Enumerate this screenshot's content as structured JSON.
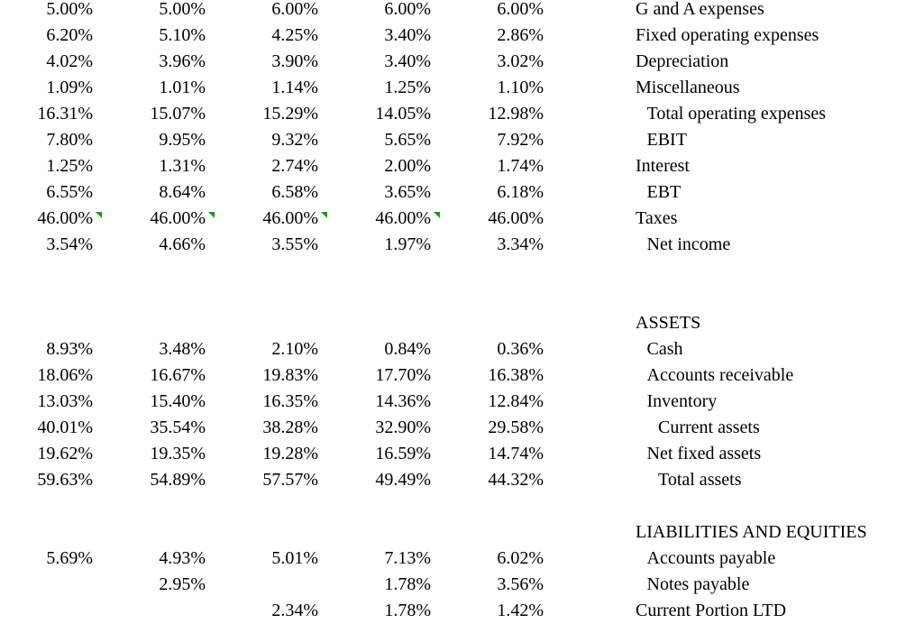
{
  "sections": [
    {
      "rows": [
        {
          "cells": [
            "5.00%",
            "5.00%",
            "6.00%",
            "6.00%",
            "6.00%"
          ],
          "label": "G and A expenses",
          "indent": 0
        },
        {
          "cells": [
            "6.20%",
            "5.10%",
            "4.25%",
            "3.40%",
            "2.86%"
          ],
          "label": "Fixed operating expenses",
          "indent": 0
        },
        {
          "cells": [
            "4.02%",
            "3.96%",
            "3.90%",
            "3.40%",
            "3.02%"
          ],
          "label": "Depreciation",
          "indent": 0
        },
        {
          "cells": [
            "1.09%",
            "1.01%",
            "1.14%",
            "1.25%",
            "1.10%"
          ],
          "label": "Miscellaneous",
          "indent": 0
        },
        {
          "cells": [
            "16.31%",
            "15.07%",
            "15.29%",
            "14.05%",
            "12.98%"
          ],
          "label": "Total operating expenses",
          "indent": 1
        },
        {
          "cells": [
            "7.80%",
            "9.95%",
            "9.32%",
            "5.65%",
            "7.92%"
          ],
          "label": "EBIT",
          "indent": 1
        },
        {
          "cells": [
            "1.25%",
            "1.31%",
            "2.74%",
            "2.00%",
            "1.74%"
          ],
          "label": "Interest",
          "indent": 0
        },
        {
          "cells": [
            "6.55%",
            "8.64%",
            "6.58%",
            "3.65%",
            "6.18%"
          ],
          "label": "EBT",
          "indent": 1
        },
        {
          "cells": [
            "46.00%",
            "46.00%",
            "46.00%",
            "46.00%",
            "46.00%"
          ],
          "label": "Taxes",
          "indent": 0,
          "flags": [
            true,
            true,
            true,
            true,
            false
          ]
        },
        {
          "cells": [
            "3.54%",
            "4.66%",
            "3.55%",
            "1.97%",
            "3.34%"
          ],
          "label": "Net income",
          "indent": 1
        }
      ]
    },
    {
      "heading": "ASSETS",
      "rows": [
        {
          "cells": [
            "8.93%",
            "3.48%",
            "2.10%",
            "0.84%",
            "0.36%"
          ],
          "label": "Cash",
          "indent": 1
        },
        {
          "cells": [
            "18.06%",
            "16.67%",
            "19.83%",
            "17.70%",
            "16.38%"
          ],
          "label": "Accounts receivable",
          "indent": 1
        },
        {
          "cells": [
            "13.03%",
            "15.40%",
            "16.35%",
            "14.36%",
            "12.84%"
          ],
          "label": "Inventory",
          "indent": 1
        },
        {
          "cells": [
            "40.01%",
            "35.54%",
            "38.28%",
            "32.90%",
            "29.58%"
          ],
          "label": "Current assets",
          "indent": 2
        },
        {
          "cells": [
            "19.62%",
            "19.35%",
            "19.28%",
            "16.59%",
            "14.74%"
          ],
          "label": "Net fixed assets",
          "indent": 1
        },
        {
          "cells": [
            "59.63%",
            "54.89%",
            "57.57%",
            "49.49%",
            "44.32%"
          ],
          "label": "Total assets",
          "indent": 2
        }
      ]
    },
    {
      "heading": "LIABILITIES AND EQUITIES",
      "rows": [
        {
          "cells": [
            "5.69%",
            "4.93%",
            "5.01%",
            "7.13%",
            "6.02%"
          ],
          "label": "Accounts payable",
          "indent": 1
        },
        {
          "cells": [
            null,
            "2.95%",
            null,
            "1.78%",
            "3.56%"
          ],
          "label": "Notes payable",
          "indent": 1
        },
        {
          "cells": [
            null,
            null,
            "2.34%",
            "1.78%",
            "1.42%"
          ],
          "label": "Current Portion LTD",
          "indent": 0
        }
      ]
    }
  ]
}
